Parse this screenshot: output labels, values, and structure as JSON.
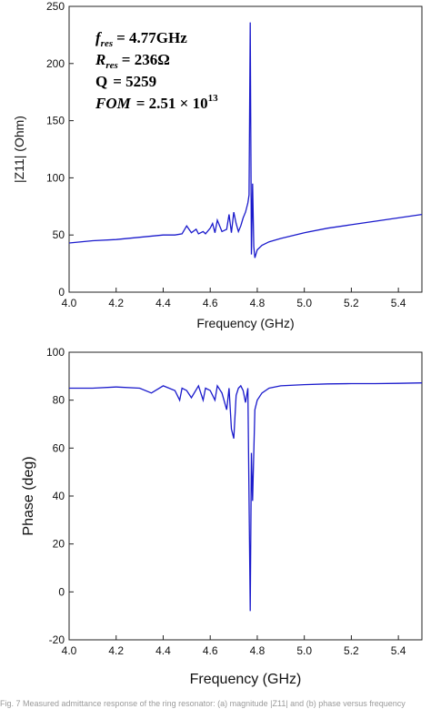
{
  "chart_data": [
    {
      "type": "line",
      "xlabel": "Frequency (GHz)",
      "ylabel": "|Z11| (Ohm)",
      "xlim": [
        4.0,
        5.5
      ],
      "ylim": [
        0,
        250
      ],
      "x_ticks": [
        "4.0",
        "4.2",
        "4.4",
        "4.6",
        "4.8",
        "5.0",
        "5.2",
        "5.4"
      ],
      "y_ticks": [
        "0",
        "50",
        "100",
        "150",
        "200",
        "250"
      ],
      "line_color": "#1a1acc",
      "annotations": [
        {
          "name": "f",
          "sub": "res",
          "text": "= 4.77GHz"
        },
        {
          "name": "R",
          "sub": "res",
          "text": "= 236Ω"
        },
        {
          "name": "Q",
          "sub": "",
          "text": "=  5259"
        },
        {
          "name": "FOM",
          "sub": "",
          "text": "=  2.51 × 10",
          "sup": "13"
        }
      ],
      "series": [
        {
          "x": [
            4.0,
            4.1,
            4.2,
            4.3,
            4.4,
            4.45,
            4.48,
            4.5,
            4.52,
            4.54,
            4.55,
            4.57,
            4.58,
            4.6,
            4.61,
            4.62,
            4.63,
            4.65,
            4.67,
            4.68,
            4.69,
            4.7,
            4.71,
            4.72,
            4.73,
            4.74,
            4.75,
            4.76,
            4.765,
            4.77,
            4.775,
            4.78,
            4.785,
            4.79,
            4.8,
            4.82,
            4.85,
            4.9,
            5.0,
            5.1,
            5.2,
            5.3,
            5.4,
            5.5
          ],
          "y": [
            43,
            45,
            46,
            48,
            50,
            50,
            51,
            58,
            52,
            55,
            51,
            53,
            51,
            56,
            60,
            52,
            63,
            53,
            55,
            68,
            52,
            70,
            60,
            53,
            58,
            65,
            70,
            78,
            85,
            236,
            33,
            95,
            40,
            30,
            37,
            41,
            44,
            47,
            52,
            56,
            59,
            62,
            65,
            68
          ]
        }
      ]
    },
    {
      "type": "line",
      "xlabel": "Frequency (GHz)",
      "ylabel": "Phase (deg)",
      "xlim": [
        4.0,
        5.5
      ],
      "ylim": [
        -20,
        100
      ],
      "x_ticks": [
        "4.0",
        "4.2",
        "4.4",
        "4.6",
        "4.8",
        "5.0",
        "5.2",
        "5.4"
      ],
      "y_ticks": [
        "-20",
        "0",
        "20",
        "40",
        "60",
        "80",
        "100"
      ],
      "line_color": "#1a1acc",
      "series": [
        {
          "x": [
            4.0,
            4.1,
            4.2,
            4.3,
            4.35,
            4.4,
            4.45,
            4.47,
            4.48,
            4.5,
            4.52,
            4.55,
            4.57,
            4.58,
            4.6,
            4.62,
            4.63,
            4.65,
            4.67,
            4.68,
            4.69,
            4.7,
            4.71,
            4.72,
            4.73,
            4.74,
            4.75,
            4.76,
            4.77,
            4.775,
            4.78,
            4.785,
            4.79,
            4.8,
            4.82,
            4.85,
            4.9,
            5.0,
            5.1,
            5.2,
            5.3,
            5.4,
            5.5
          ],
          "y": [
            85,
            85,
            85.5,
            85,
            83,
            86,
            84,
            80,
            85,
            84,
            81,
            86,
            80,
            85,
            84,
            80,
            86,
            83,
            76,
            85,
            68,
            64,
            82,
            85,
            86,
            84,
            79,
            85,
            -8,
            58,
            38,
            58,
            76,
            80,
            83,
            85,
            86,
            86.5,
            86.8,
            86.9,
            86.9,
            87,
            87.2
          ]
        }
      ]
    }
  ],
  "caption": "Fig. 7 Measured admittance response of the ring resonator: (a) magnitude |Z11| and (b) phase versus frequency"
}
